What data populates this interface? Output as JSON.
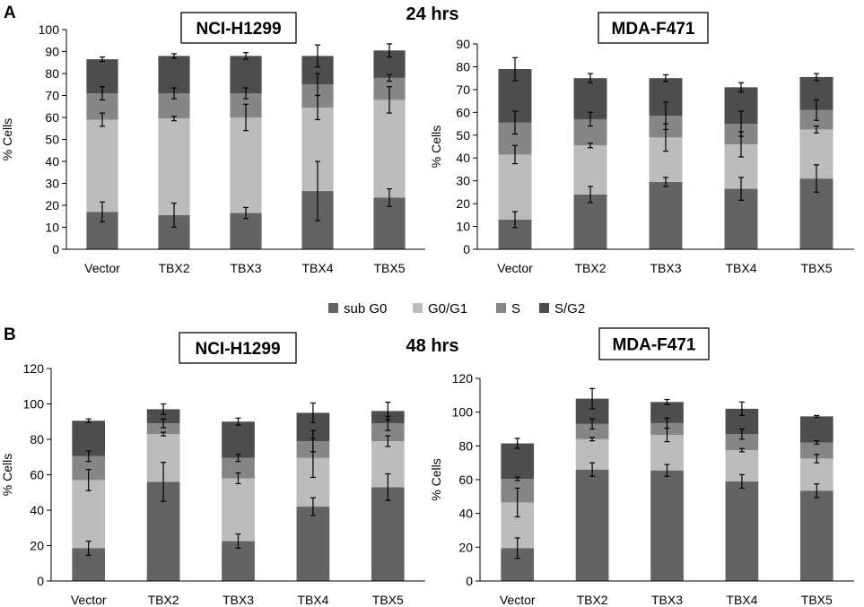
{
  "figure": {
    "panel_labels": [
      "A",
      "B"
    ],
    "time_labels": [
      "24 hrs",
      "48 hrs"
    ]
  },
  "legend": {
    "placement": "center",
    "items": [
      {
        "label": "sub G0",
        "color": "#636363"
      },
      {
        "label": "G0/G1",
        "color": "#bcbcbc"
      },
      {
        "label": "S",
        "color": "#868686"
      },
      {
        "label": "S/G2",
        "color": "#4d4d4d"
      }
    ]
  },
  "chart_data": [
    {
      "type": "bar",
      "stacked": true,
      "title": "NCI-H1299",
      "panel": "A",
      "time": "24 hrs",
      "xlabel": "",
      "ylabel": "% Cells",
      "ylim": [
        0,
        100
      ],
      "yticks": [
        0,
        10,
        20,
        30,
        40,
        50,
        60,
        70,
        80,
        90,
        100
      ],
      "categories": [
        "Vector",
        "TBX2",
        "TBX3",
        "TBX4",
        "TBX5"
      ],
      "series": [
        {
          "name": "sub G0",
          "values": [
            17,
            15.5,
            16.5,
            26.5,
            23.5
          ],
          "errors": [
            4.5,
            5.5,
            2.5,
            13.5,
            4
          ]
        },
        {
          "name": "G0/G1",
          "values": [
            42,
            44,
            43.5,
            38,
            44.5
          ],
          "errors": [
            3,
            1,
            6,
            5.5,
            6
          ]
        },
        {
          "name": "S",
          "values": [
            12,
            11.5,
            11,
            10.5,
            10
          ],
          "errors": [
            3,
            2.5,
            2.5,
            5,
            1.5
          ]
        },
        {
          "name": "S/G2",
          "values": [
            15.5,
            17,
            17,
            13,
            12.5
          ],
          "errors": [
            1,
            1,
            1.5,
            5,
            3
          ]
        }
      ]
    },
    {
      "type": "bar",
      "stacked": true,
      "title": "MDA-F471",
      "panel": "A",
      "time": "24 hrs",
      "xlabel": "",
      "ylabel": "% Cells",
      "ylim": [
        0,
        90
      ],
      "yticks": [
        0,
        10,
        20,
        30,
        40,
        50,
        60,
        70,
        80,
        90
      ],
      "categories": [
        "Vector",
        "TBX2",
        "TBX3",
        "TBX4",
        "TBX5"
      ],
      "series": [
        {
          "name": "sub G0",
          "values": [
            13,
            24,
            29.5,
            26.5,
            31
          ],
          "errors": [
            3.5,
            3.5,
            2,
            5,
            6
          ]
        },
        {
          "name": "G0/G1",
          "values": [
            28.5,
            21.5,
            19.5,
            19.5,
            21.5
          ],
          "errors": [
            4,
            1,
            6,
            5.5,
            1.5
          ]
        },
        {
          "name": "S",
          "values": [
            14,
            11.5,
            9.5,
            9,
            8.5
          ],
          "errors": [
            5,
            3,
            6,
            5.5,
            4.5
          ]
        },
        {
          "name": "S/G2",
          "values": [
            23.5,
            18,
            16.5,
            16,
            14.5
          ],
          "errors": [
            5,
            2,
            1.5,
            2,
            1.5
          ]
        }
      ]
    },
    {
      "type": "bar",
      "stacked": true,
      "title": "NCI-H1299",
      "panel": "B",
      "time": "48 hrs",
      "xlabel": "",
      "ylabel": "% Cells",
      "ylim": [
        0,
        120
      ],
      "yticks": [
        0,
        20,
        40,
        60,
        80,
        100,
        120
      ],
      "categories": [
        "Vector",
        "TBX2",
        "TBX3",
        "TBX4",
        "TBX5"
      ],
      "series": [
        {
          "name": "sub G0",
          "values": [
            18.5,
            56,
            22.5,
            42,
            53
          ],
          "errors": [
            4,
            11,
            4,
            5,
            7.5
          ]
        },
        {
          "name": "G0/G1",
          "values": [
            38.5,
            27,
            35.5,
            27.5,
            26
          ],
          "errors": [
            6,
            1,
            3,
            11,
            3
          ]
        },
        {
          "name": "S",
          "values": [
            13.5,
            6,
            11.5,
            9.5,
            10
          ],
          "errors": [
            3,
            2.5,
            2,
            6,
            4
          ]
        },
        {
          "name": "S/G2",
          "values": [
            20,
            8,
            20.5,
            16,
            7
          ],
          "errors": [
            1,
            3,
            2,
            5.5,
            5
          ]
        }
      ]
    },
    {
      "type": "bar",
      "stacked": true,
      "title": "MDA-F471",
      "panel": "B",
      "time": "48 hrs",
      "xlabel": "",
      "ylabel": "% Cells",
      "ylim": [
        0,
        120
      ],
      "yticks": [
        0,
        20,
        40,
        60,
        80,
        100,
        120
      ],
      "categories": [
        "Vector",
        "TBX2",
        "TBX3",
        "TBX4",
        "TBX5"
      ],
      "series": [
        {
          "name": "sub G0",
          "values": [
            19.5,
            66,
            65.5,
            59,
            53.5
          ],
          "errors": [
            6,
            4,
            3.5,
            4,
            4
          ]
        },
        {
          "name": "G0/G1",
          "values": [
            27,
            18,
            21,
            18.5,
            19
          ],
          "errors": [
            8.5,
            1,
            4,
            1,
            2.5
          ]
        },
        {
          "name": "S",
          "values": [
            14,
            9,
            7,
            9.5,
            9.5
          ],
          "errors": [
            1,
            3,
            3,
            3,
            1
          ]
        },
        {
          "name": "S/G2",
          "values": [
            21,
            15,
            12.5,
            15,
            15.5
          ],
          "errors": [
            3,
            6,
            1.5,
            4,
            0.5
          ]
        }
      ]
    }
  ]
}
